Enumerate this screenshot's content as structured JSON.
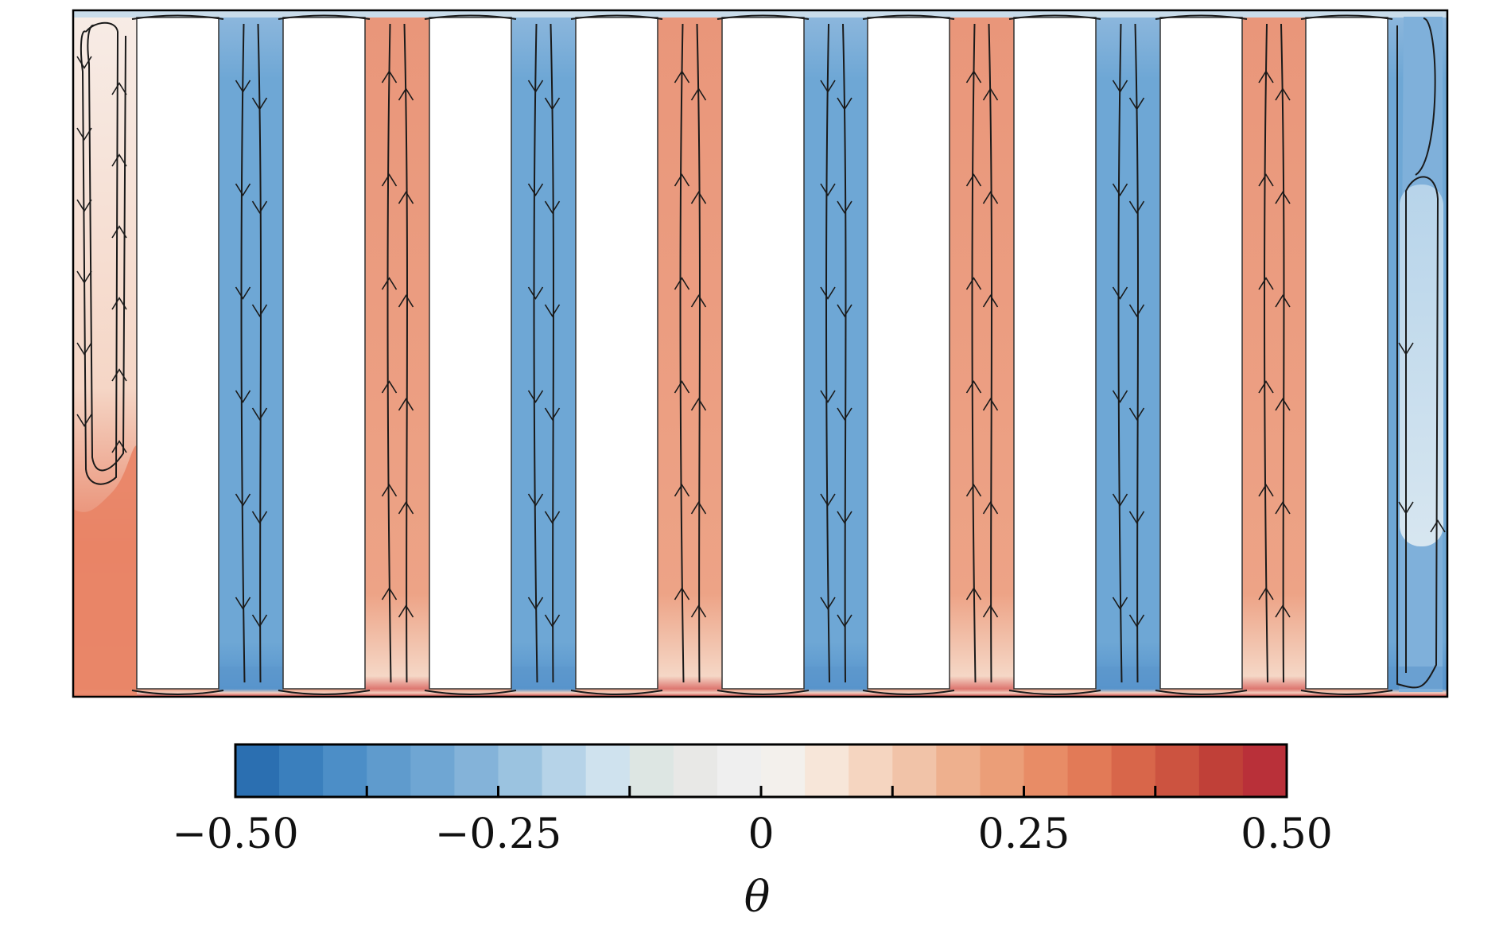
{
  "figure": {
    "type": "temperature field with streamlines",
    "obstacle_count": 9,
    "flow_cells": [
      {
        "index": 1,
        "sign": "warm",
        "flow": "down-up"
      },
      {
        "index": 2,
        "sign": "cold",
        "flow": "down"
      },
      {
        "index": 3,
        "sign": "warm",
        "flow": "up"
      },
      {
        "index": 4,
        "sign": "cold",
        "flow": "down"
      },
      {
        "index": 5,
        "sign": "warm",
        "flow": "up"
      },
      {
        "index": 6,
        "sign": "cold",
        "flow": "down"
      },
      {
        "index": 7,
        "sign": "warm",
        "flow": "up"
      },
      {
        "index": 8,
        "sign": "cold",
        "flow": "down"
      },
      {
        "index": 9,
        "sign": "warm",
        "flow": "up"
      },
      {
        "index": 10,
        "sign": "cold",
        "flow": "down"
      }
    ]
  },
  "colorbar": {
    "label": "θ",
    "range": [
      -0.5,
      0.5
    ],
    "ticks": [
      {
        "value": -0.5,
        "label": "−0.50"
      },
      {
        "value": -0.25,
        "label": "−0.25"
      },
      {
        "value": 0,
        "label": "0"
      },
      {
        "value": 0.25,
        "label": "0.25"
      },
      {
        "value": 0.5,
        "label": "0.50"
      }
    ],
    "minor_ticks": [
      -0.375,
      -0.125,
      0.125,
      0.375
    ],
    "colors": [
      "#2b6fb1",
      "#3a7fbd",
      "#4c8ec7",
      "#5f9bcd",
      "#6fa6d3",
      "#84b3d9",
      "#9bc3e0",
      "#b6d3e8",
      "#cfe2ee",
      "#dde6e3",
      "#e8e8e6",
      "#efefef",
      "#f3f0ec",
      "#f7e6d9",
      "#f5d5c0",
      "#f1c3a8",
      "#eeb08e",
      "#eb9e78",
      "#e88c66",
      "#e27a57",
      "#d8664a",
      "#cc5340",
      "#c04038",
      "#b93039"
    ]
  },
  "colors": {
    "cold": "#6ea7d5",
    "cold_edge": "#4f8ec9",
    "warm": "#e9967a",
    "warm_edge": "#e07a5f",
    "hot": "#cf3b3b",
    "pale": "#f6e8e1",
    "streamline": "#1a1a1a",
    "frame": "#000000"
  }
}
